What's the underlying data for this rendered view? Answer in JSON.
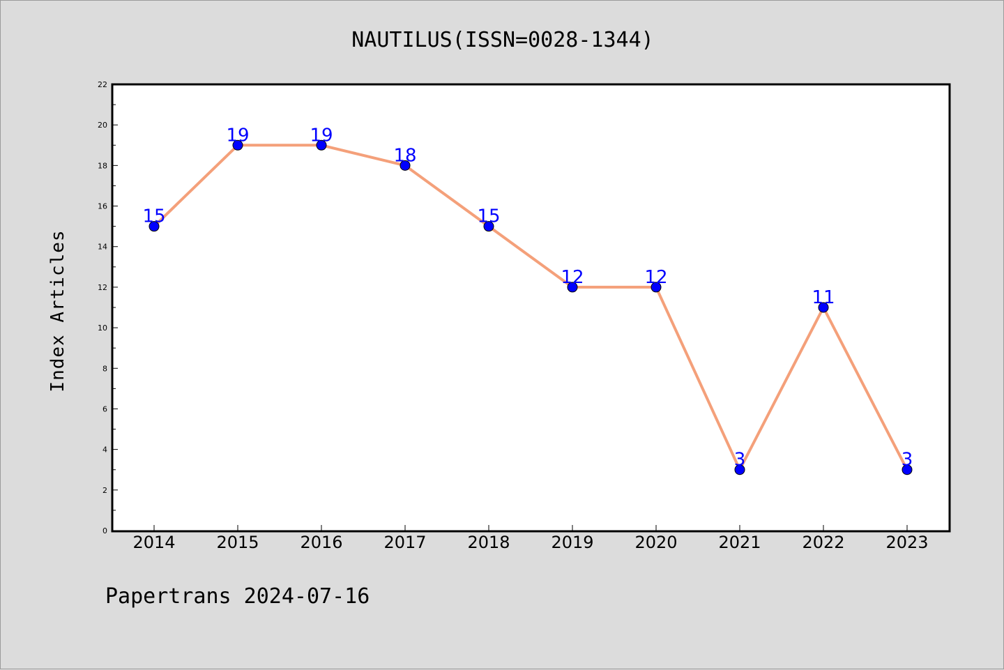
{
  "chart_data": {
    "type": "line",
    "title": "NAUTILUS(ISSN=0028-1344)",
    "xlabel": "",
    "ylabel": "Index Articles",
    "categories": [
      "2014",
      "2015",
      "2016",
      "2017",
      "2018",
      "2019",
      "2020",
      "2021",
      "2022",
      "2023"
    ],
    "series": [
      {
        "values": [
          15,
          19,
          19,
          18,
          15,
          12,
          12,
          3,
          11,
          3
        ]
      }
    ],
    "ylim": [
      0,
      22
    ],
    "yticks": [
      0,
      2,
      4,
      6,
      8,
      10,
      12,
      14,
      16,
      18,
      20,
      22
    ],
    "grid": false,
    "data_labels": true,
    "colors": {
      "line": "#f4a07a",
      "marker": "#0000ff",
      "label": "#0000ff",
      "background": "#dcdcdc",
      "plot_bg": "#ffffff"
    }
  },
  "footer": "Papertrans 2024-07-16"
}
